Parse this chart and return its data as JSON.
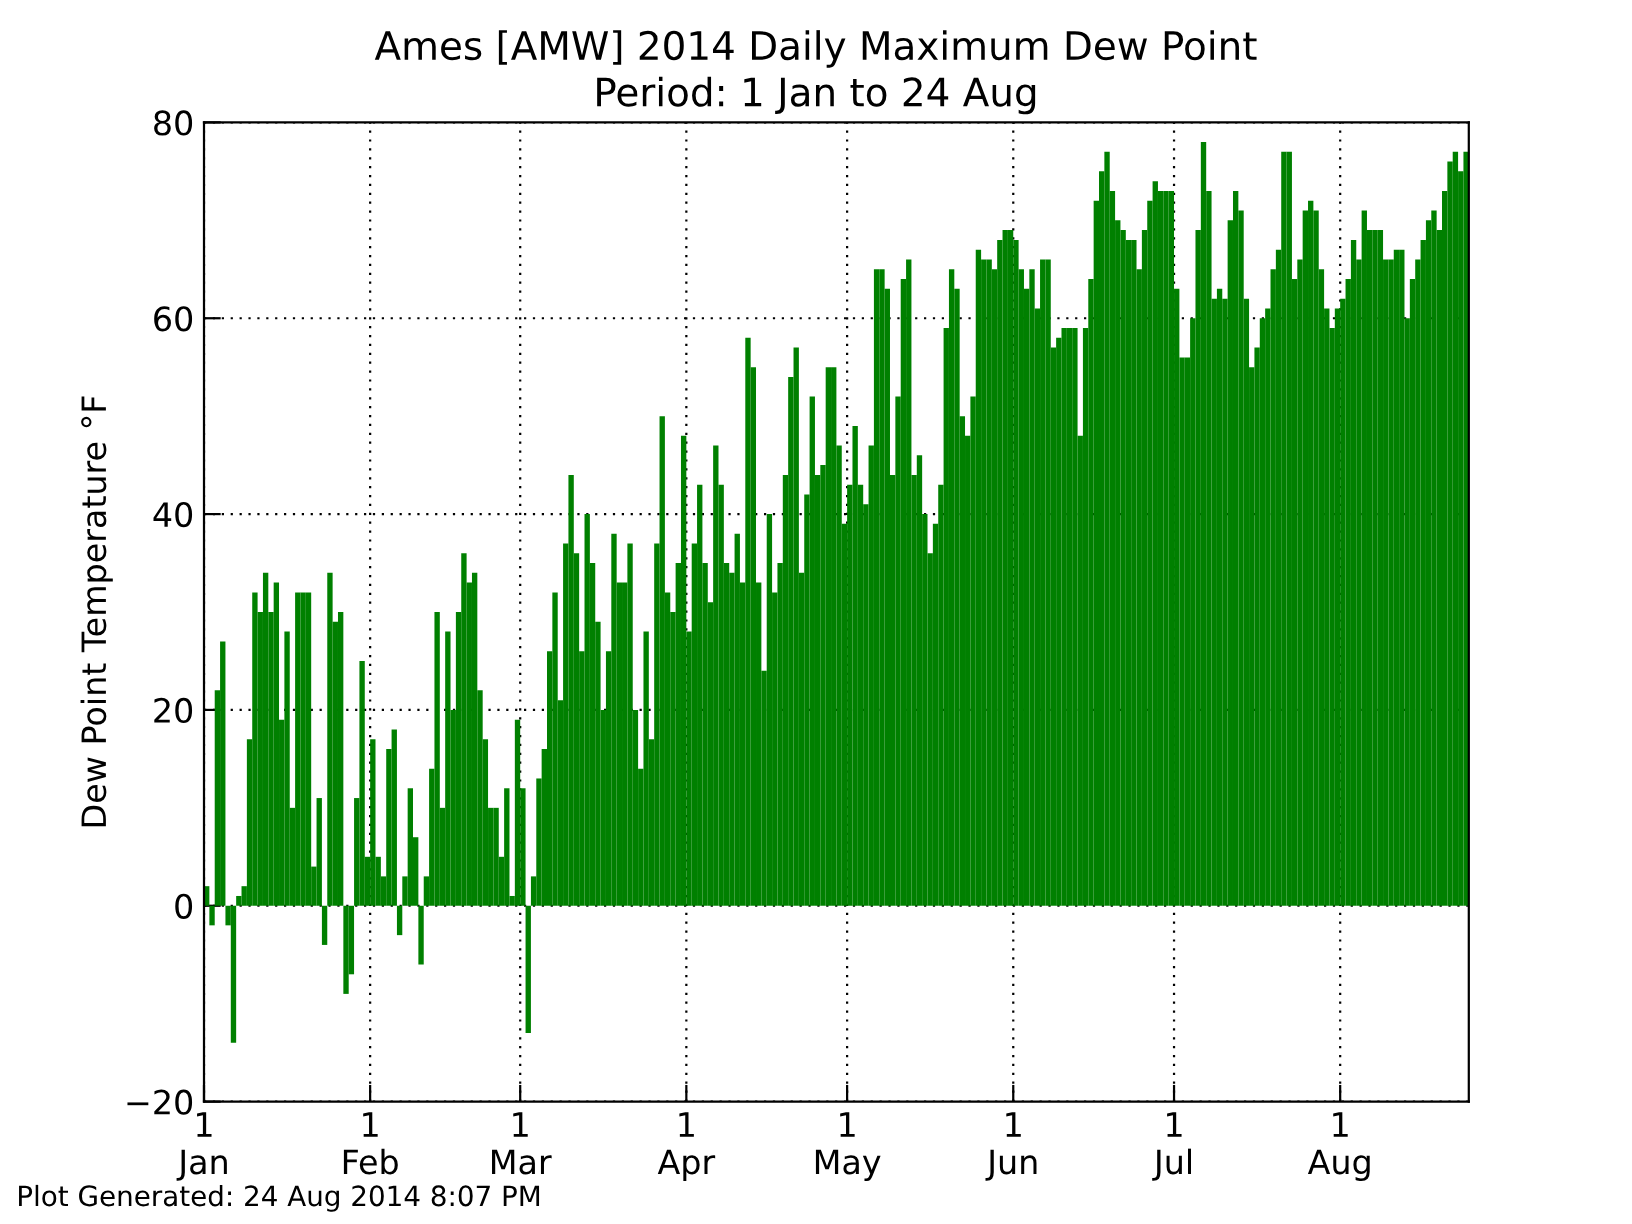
{
  "chart_data": {
    "type": "bar",
    "title": "Ames [AMW] 2014 Daily Maximum Dew Point",
    "subtitle": "Period: 1 Jan to 24 Aug",
    "ylabel": "Dew Point Temperature °F",
    "annotations": [
      "Plot Generated: 24 Aug 2014 8:07 PM"
    ],
    "x": [
      "2014-01-01",
      "2014-01-02",
      "2014-01-03",
      "2014-01-04",
      "2014-01-05",
      "2014-01-06",
      "2014-01-07",
      "2014-01-08",
      "2014-01-09",
      "2014-01-10",
      "2014-01-11",
      "2014-01-12",
      "2014-01-13",
      "2014-01-14",
      "2014-01-15",
      "2014-01-16",
      "2014-01-17",
      "2014-01-18",
      "2014-01-19",
      "2014-01-20",
      "2014-01-21",
      "2014-01-22",
      "2014-01-23",
      "2014-01-24",
      "2014-01-25",
      "2014-01-26",
      "2014-01-27",
      "2014-01-28",
      "2014-01-29",
      "2014-01-30",
      "2014-01-31",
      "2014-02-01",
      "2014-02-02",
      "2014-02-03",
      "2014-02-04",
      "2014-02-05",
      "2014-02-06",
      "2014-02-07",
      "2014-02-08",
      "2014-02-09",
      "2014-02-10",
      "2014-02-11",
      "2014-02-12",
      "2014-02-13",
      "2014-02-14",
      "2014-02-15",
      "2014-02-16",
      "2014-02-17",
      "2014-02-18",
      "2014-02-19",
      "2014-02-20",
      "2014-02-21",
      "2014-02-22",
      "2014-02-23",
      "2014-02-24",
      "2014-02-25",
      "2014-02-26",
      "2014-02-27",
      "2014-02-28",
      "2014-03-01",
      "2014-03-02",
      "2014-03-03",
      "2014-03-04",
      "2014-03-05",
      "2014-03-06",
      "2014-03-07",
      "2014-03-08",
      "2014-03-09",
      "2014-03-10",
      "2014-03-11",
      "2014-03-12",
      "2014-03-13",
      "2014-03-14",
      "2014-03-15",
      "2014-03-16",
      "2014-03-17",
      "2014-03-18",
      "2014-03-19",
      "2014-03-20",
      "2014-03-21",
      "2014-03-22",
      "2014-03-23",
      "2014-03-24",
      "2014-03-25",
      "2014-03-26",
      "2014-03-27",
      "2014-03-28",
      "2014-03-29",
      "2014-03-30",
      "2014-03-31",
      "2014-04-01",
      "2014-04-02",
      "2014-04-03",
      "2014-04-04",
      "2014-04-05",
      "2014-04-06",
      "2014-04-07",
      "2014-04-08",
      "2014-04-09",
      "2014-04-10",
      "2014-04-11",
      "2014-04-12",
      "2014-04-13",
      "2014-04-14",
      "2014-04-15",
      "2014-04-16",
      "2014-04-17",
      "2014-04-18",
      "2014-04-19",
      "2014-04-20",
      "2014-04-21",
      "2014-04-22",
      "2014-04-23",
      "2014-04-24",
      "2014-04-25",
      "2014-04-26",
      "2014-04-27",
      "2014-04-28",
      "2014-04-29",
      "2014-04-30",
      "2014-05-01",
      "2014-05-02",
      "2014-05-03",
      "2014-05-04",
      "2014-05-05",
      "2014-05-06",
      "2014-05-07",
      "2014-05-08",
      "2014-05-09",
      "2014-05-10",
      "2014-05-11",
      "2014-05-12",
      "2014-05-13",
      "2014-05-14",
      "2014-05-15",
      "2014-05-16",
      "2014-05-17",
      "2014-05-18",
      "2014-05-19",
      "2014-05-20",
      "2014-05-21",
      "2014-05-22",
      "2014-05-23",
      "2014-05-24",
      "2014-05-25",
      "2014-05-26",
      "2014-05-27",
      "2014-05-28",
      "2014-05-29",
      "2014-05-30",
      "2014-05-31",
      "2014-06-01",
      "2014-06-02",
      "2014-06-03",
      "2014-06-04",
      "2014-06-05",
      "2014-06-06",
      "2014-06-07",
      "2014-06-08",
      "2014-06-09",
      "2014-06-10",
      "2014-06-11",
      "2014-06-12",
      "2014-06-13",
      "2014-06-14",
      "2014-06-15",
      "2014-06-16",
      "2014-06-17",
      "2014-06-18",
      "2014-06-19",
      "2014-06-20",
      "2014-06-21",
      "2014-06-22",
      "2014-06-23",
      "2014-06-24",
      "2014-06-25",
      "2014-06-26",
      "2014-06-27",
      "2014-06-28",
      "2014-06-29",
      "2014-06-30",
      "2014-07-01",
      "2014-07-02",
      "2014-07-03",
      "2014-07-04",
      "2014-07-05",
      "2014-07-06",
      "2014-07-07",
      "2014-07-08",
      "2014-07-09",
      "2014-07-10",
      "2014-07-11",
      "2014-07-12",
      "2014-07-13",
      "2014-07-14",
      "2014-07-15",
      "2014-07-16",
      "2014-07-17",
      "2014-07-18",
      "2014-07-19",
      "2014-07-20",
      "2014-07-21",
      "2014-07-22",
      "2014-07-23",
      "2014-07-24",
      "2014-07-25",
      "2014-07-26",
      "2014-07-27",
      "2014-07-28",
      "2014-07-29",
      "2014-07-30",
      "2014-07-31",
      "2014-08-01",
      "2014-08-02",
      "2014-08-03",
      "2014-08-04",
      "2014-08-05",
      "2014-08-06",
      "2014-08-07",
      "2014-08-08",
      "2014-08-09",
      "2014-08-10",
      "2014-08-11",
      "2014-08-12",
      "2014-08-13",
      "2014-08-14",
      "2014-08-15",
      "2014-08-16",
      "2014-08-17",
      "2014-08-18",
      "2014-08-19",
      "2014-08-20",
      "2014-08-21",
      "2014-08-22",
      "2014-08-23",
      "2014-08-24"
    ],
    "values": [
      2,
      -2,
      22,
      27,
      -2,
      -14,
      1,
      2,
      17,
      32,
      30,
      34,
      30,
      33,
      19,
      28,
      10,
      32,
      32,
      32,
      4,
      11,
      -4,
      34,
      29,
      30,
      -9,
      -7,
      11,
      25,
      5,
      17,
      5,
      3,
      16,
      18,
      -3,
      3,
      12,
      7,
      -6,
      3,
      14,
      30,
      10,
      28,
      20,
      30,
      36,
      33,
      34,
      22,
      17,
      10,
      10,
      5,
      12,
      1,
      19,
      12,
      -13,
      3,
      13,
      16,
      26,
      32,
      21,
      37,
      44,
      36,
      26,
      40,
      35,
      29,
      20,
      26,
      38,
      33,
      33,
      37,
      20,
      14,
      28,
      17,
      37,
      50,
      32,
      30,
      35,
      48,
      28,
      37,
      43,
      35,
      31,
      47,
      43,
      35,
      34,
      38,
      33,
      58,
      55,
      33,
      24,
      40,
      32,
      35,
      44,
      54,
      57,
      34,
      42,
      52,
      44,
      45,
      55,
      55,
      47,
      39,
      43,
      49,
      43,
      41,
      47,
      65,
      65,
      63,
      44,
      52,
      64,
      66,
      44,
      46,
      40,
      36,
      39,
      43,
      59,
      65,
      63,
      50,
      48,
      52,
      67,
      66,
      66,
      65,
      68,
      69,
      69,
      68,
      65,
      63,
      65,
      61,
      66,
      66,
      57,
      58,
      59,
      59,
      59,
      48,
      59,
      64,
      72,
      75,
      77,
      73,
      70,
      69,
      68,
      68,
      65,
      69,
      72,
      74,
      73,
      73,
      73,
      63,
      56,
      56,
      60,
      69,
      78,
      73,
      62,
      63,
      62,
      70,
      73,
      71,
      62,
      55,
      57,
      60,
      61,
      65,
      67,
      77,
      77,
      64,
      66,
      71,
      72,
      71,
      65,
      61,
      59,
      61,
      62,
      64,
      68,
      66,
      71,
      69,
      69,
      69,
      66,
      66,
      67,
      67,
      60,
      64,
      66,
      68,
      70,
      71,
      69,
      73,
      76,
      77,
      75,
      77
    ],
    "color": "#008000",
    "xlim": [
      "2014-01-01",
      "2014-08-25"
    ],
    "xticks": [
      {
        "value": "2014-01-01",
        "label": "1\nJan"
      },
      {
        "value": "2014-02-01",
        "label": "1\nFeb"
      },
      {
        "value": "2014-03-01",
        "label": "1\nMar"
      },
      {
        "value": "2014-04-01",
        "label": "1\nApr"
      },
      {
        "value": "2014-05-01",
        "label": "1\nMay"
      },
      {
        "value": "2014-06-01",
        "label": "1\nJun"
      },
      {
        "value": "2014-07-01",
        "label": "1\nJul"
      },
      {
        "value": "2014-08-01",
        "label": "1\nAug"
      }
    ],
    "ylim": [
      -20,
      80
    ],
    "yticks": [
      {
        "value": -20,
        "label": "−20"
      },
      0,
      20,
      40,
      60,
      80
    ],
    "grid": true,
    "legend": false
  }
}
